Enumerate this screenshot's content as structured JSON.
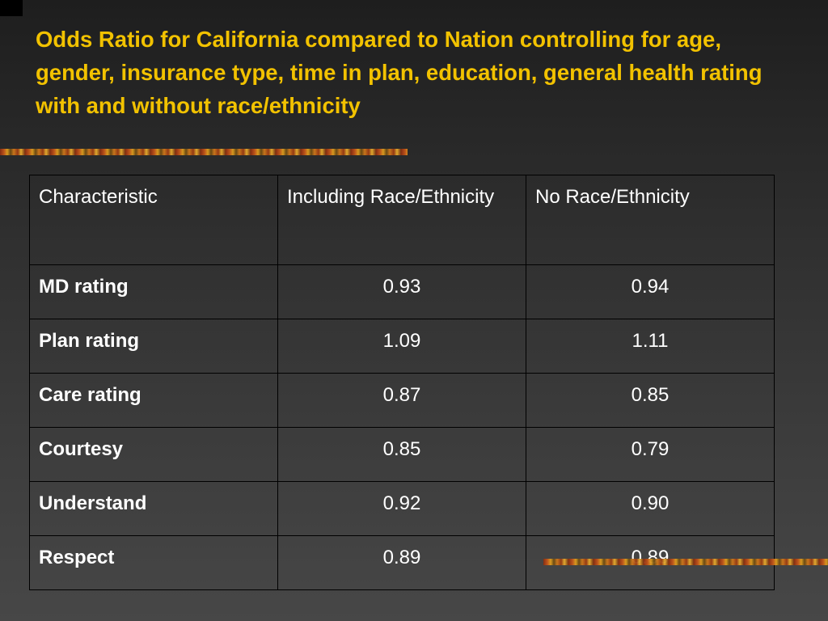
{
  "slide": {
    "title": "Odds Ratio for California compared to Nation controlling for age, gender, insurance type, time in plan, education, general health rating  with and without race/ethnicity"
  },
  "table": {
    "headers": [
      "Characteristic",
      "Including Race/Ethnicity",
      "No Race/Ethnicity"
    ],
    "rows": [
      {
        "label": "MD rating",
        "including": "0.93",
        "no_race": "0.94"
      },
      {
        "label": "Plan rating",
        "including": "1.09",
        "no_race": "1.11"
      },
      {
        "label": "Care rating",
        "including": "0.87",
        "no_race": "0.85"
      },
      {
        "label": "Courtesy",
        "including": "0.85",
        "no_race": "0.79"
      },
      {
        "label": "Understand",
        "including": "0.92",
        "no_race": "0.90"
      },
      {
        "label": "Respect",
        "including": "0.89",
        "no_race": "0.89"
      }
    ]
  },
  "colors": {
    "title": "#f2c200",
    "text": "#ffffff",
    "background": "#3a3a3a",
    "grid": "#000000"
  }
}
